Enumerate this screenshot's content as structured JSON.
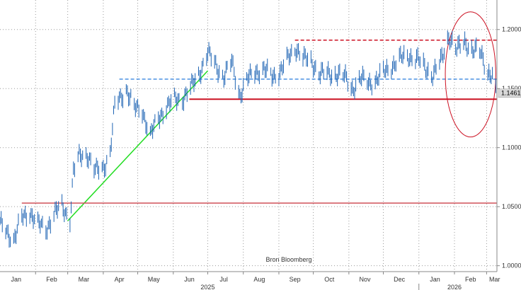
{
  "chart_data": {
    "type": "line",
    "title": "",
    "xlabel": "",
    "ylabel": "",
    "x_range": [
      "2025-01-01",
      "2026-03-10"
    ],
    "ylim": [
      0.995,
      1.225
    ],
    "y_ticks": [
      {
        "value": 1.0,
        "label": "1.0000"
      },
      {
        "value": 1.05,
        "label": "1.0500"
      },
      {
        "value": 1.1,
        "label": "1.1000"
      },
      {
        "value": 1.15,
        "label": "1.1500"
      },
      {
        "value": 1.2,
        "label": "1.2000"
      }
    ],
    "month_ticks": [
      {
        "date": "2025-01-15",
        "label": "Jan"
      },
      {
        "date": "2025-02-15",
        "label": "Feb"
      },
      {
        "date": "2025-03-15",
        "label": "Mar"
      },
      {
        "date": "2025-04-15",
        "label": "Apr"
      },
      {
        "date": "2025-05-15",
        "label": "May"
      },
      {
        "date": "2025-06-15",
        "label": "Jun"
      },
      {
        "date": "2025-07-15",
        "label": "Jul"
      },
      {
        "date": "2025-08-15",
        "label": "Aug"
      },
      {
        "date": "2025-09-15",
        "label": "Sep"
      },
      {
        "date": "2025-10-15",
        "label": "Oct"
      },
      {
        "date": "2025-11-15",
        "label": "Nov"
      },
      {
        "date": "2025-12-15",
        "label": "Dec"
      },
      {
        "date": "2026-01-15",
        "label": "Jan"
      },
      {
        "date": "2026-02-15",
        "label": "Feb"
      },
      {
        "date": "2026-03-08",
        "label": "Mar"
      }
    ],
    "year_labels": [
      {
        "date": "2025-07-01",
        "label": "2025"
      },
      {
        "date": "2026-02-01",
        "label": "2026"
      }
    ],
    "grid": true,
    "series": [
      {
        "color": "#1e64b4",
        "points": [
          [
            "2025-01-01",
            1.035
          ],
          [
            "2025-01-08",
            1.028
          ],
          [
            "2025-01-13",
            1.022
          ],
          [
            "2025-01-20",
            1.04
          ],
          [
            "2025-01-27",
            1.046
          ],
          [
            "2025-02-03",
            1.035
          ],
          [
            "2025-02-10",
            1.031
          ],
          [
            "2025-02-17",
            1.044
          ],
          [
            "2025-02-24",
            1.05
          ],
          [
            "2025-03-03",
            1.04
          ],
          [
            "2025-03-06",
            1.08
          ],
          [
            "2025-03-11",
            1.092
          ],
          [
            "2025-03-18",
            1.095
          ],
          [
            "2025-03-25",
            1.08
          ],
          [
            "2025-04-01",
            1.083
          ],
          [
            "2025-04-07",
            1.096
          ],
          [
            "2025-04-11",
            1.135
          ],
          [
            "2025-04-21",
            1.15
          ],
          [
            "2025-04-28",
            1.133
          ],
          [
            "2025-05-05",
            1.132
          ],
          [
            "2025-05-12",
            1.11
          ],
          [
            "2025-05-19",
            1.125
          ],
          [
            "2025-05-26",
            1.135
          ],
          [
            "2025-06-02",
            1.14
          ],
          [
            "2025-06-09",
            1.142
          ],
          [
            "2025-06-16",
            1.15
          ],
          [
            "2025-06-23",
            1.162
          ],
          [
            "2025-07-01",
            1.18
          ],
          [
            "2025-07-08",
            1.17
          ],
          [
            "2025-07-15",
            1.16
          ],
          [
            "2025-07-22",
            1.172
          ],
          [
            "2025-07-29",
            1.145
          ],
          [
            "2025-08-05",
            1.158
          ],
          [
            "2025-08-12",
            1.165
          ],
          [
            "2025-08-19",
            1.166
          ],
          [
            "2025-08-26",
            1.16
          ],
          [
            "2025-09-02",
            1.165
          ],
          [
            "2025-09-09",
            1.175
          ],
          [
            "2025-09-16",
            1.185
          ],
          [
            "2025-09-23",
            1.175
          ],
          [
            "2025-09-30",
            1.172
          ],
          [
            "2025-10-07",
            1.163
          ],
          [
            "2025-10-14",
            1.162
          ],
          [
            "2025-10-21",
            1.163
          ],
          [
            "2025-10-28",
            1.16
          ],
          [
            "2025-11-04",
            1.15
          ],
          [
            "2025-11-11",
            1.158
          ],
          [
            "2025-11-18",
            1.155
          ],
          [
            "2025-11-25",
            1.157
          ],
          [
            "2025-12-02",
            1.164
          ],
          [
            "2025-12-09",
            1.17
          ],
          [
            "2025-12-16",
            1.175
          ],
          [
            "2025-12-23",
            1.178
          ],
          [
            "2025-12-30",
            1.175
          ],
          [
            "2026-01-06",
            1.168
          ],
          [
            "2026-01-13",
            1.162
          ],
          [
            "2026-01-20",
            1.172
          ],
          [
            "2026-01-27",
            1.195
          ],
          [
            "2026-02-03",
            1.182
          ],
          [
            "2026-02-10",
            1.19
          ],
          [
            "2026-02-17",
            1.182
          ],
          [
            "2026-02-24",
            1.18
          ],
          [
            "2026-03-02",
            1.165
          ],
          [
            "2026-03-06",
            1.16
          ],
          [
            "2026-03-09",
            1.146
          ]
        ]
      }
    ],
    "last_value": {
      "value": 1.1461,
      "label": "1.1461"
    },
    "annotations": [
      {
        "kind": "trendline",
        "color": "#22dd22",
        "from": [
          "2025-03-01",
          1.038
        ],
        "to": [
          "2025-07-01",
          1.165
        ]
      },
      {
        "kind": "hline",
        "style": "solid",
        "color": "#d0505a",
        "value": 1.053,
        "from": "2025-01-20",
        "to": "2026-03-10"
      },
      {
        "kind": "hline",
        "style": "solid",
        "color": "#cc1122",
        "value": 1.141,
        "from": "2025-06-15",
        "to": "2026-03-10"
      },
      {
        "kind": "hline",
        "style": "dashed",
        "color": "#4a90e2",
        "value": 1.158,
        "from": "2025-04-15",
        "to": "2026-03-10"
      },
      {
        "kind": "hline",
        "style": "dashed",
        "color": "#cc1122",
        "value": 1.191,
        "from": "2025-09-15",
        "to": "2026-03-10"
      },
      {
        "kind": "ellipse",
        "color": "#cc1122",
        "center": [
          "2026-02-15",
          1.162
        ],
        "x_radius_days": 22,
        "y_radius": 0.053
      }
    ],
    "source_text": "Bron Bloomberg"
  }
}
